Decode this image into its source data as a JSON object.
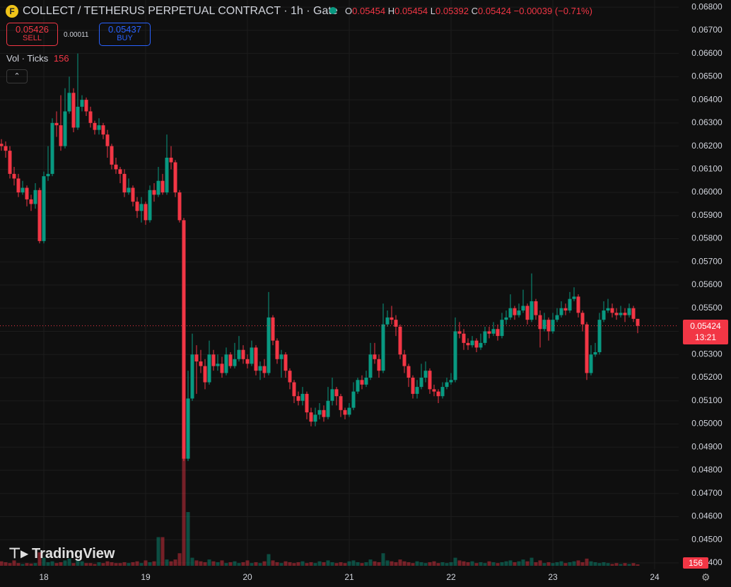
{
  "header": {
    "icon": "F",
    "title": "COLLECT / TETHERUS PERPETUAL CONTRACT · 1h · Gate",
    "ohlc_letters": [
      "O",
      "H",
      "L",
      "C"
    ],
    "change": "−0.00039 (−0.71%)",
    "sell_price": "0.05426",
    "sell_label": "SELL",
    "spread": "0.00011",
    "buy_price": "0.05437",
    "buy_label": "BUY",
    "indicator": "Vol · Ticks",
    "countdown": "13:21",
    "logo": "TradingView"
  },
  "chart_data": {
    "type": "candlestick",
    "up_color": "#089981",
    "down_color": "#f23645",
    "grid": true,
    "categories": [
      null,
      null,
      null,
      null,
      null,
      null,
      null,
      null,
      null,
      null,
      "18",
      null,
      null,
      null,
      null,
      null,
      null,
      null,
      null,
      null,
      null,
      null,
      null,
      null,
      null,
      null,
      null,
      null,
      null,
      null,
      null,
      null,
      null,
      null,
      "19",
      null,
      null,
      null,
      null,
      null,
      null,
      null,
      null,
      null,
      null,
      null,
      null,
      null,
      null,
      null,
      null,
      null,
      null,
      null,
      null,
      null,
      null,
      null,
      "20",
      null,
      null,
      null,
      null,
      null,
      null,
      null,
      null,
      null,
      null,
      null,
      null,
      null,
      null,
      null,
      null,
      null,
      null,
      null,
      null,
      null,
      null,
      null,
      "21",
      null,
      null,
      null,
      null,
      null,
      null,
      null,
      null,
      null,
      null,
      null,
      null,
      null,
      null,
      null,
      null,
      null,
      null,
      null,
      null,
      null,
      null,
      null,
      "22",
      null,
      null,
      null,
      null,
      null,
      null,
      null,
      null,
      null,
      null,
      null,
      null,
      null,
      null,
      null,
      null,
      null,
      null,
      null,
      null,
      null,
      null,
      null,
      "23",
      null,
      null,
      null,
      null,
      null,
      null,
      null,
      null,
      null,
      null,
      null,
      null,
      null,
      null,
      null,
      null,
      null,
      null,
      null,
      null,
      null,
      null,
      null,
      "24"
    ],
    "open": [
      0.0621,
      0.062,
      0.0618,
      0.0608,
      0.0606,
      0.06,
      0.0602,
      0.0597,
      0.0595,
      0.0601,
      0.0579,
      0.0607,
      0.0608,
      0.063,
      0.0629,
      0.062,
      0.0635,
      0.0643,
      0.0628,
      0.0637,
      0.064,
      0.0635,
      0.063,
      0.0627,
      0.0629,
      0.0625,
      0.062,
      0.0612,
      0.061,
      0.0608,
      0.06,
      0.0602,
      0.0596,
      0.0592,
      0.0595,
      0.0588,
      0.0601,
      0.0599,
      0.0605,
      0.06,
      0.0615,
      0.0613,
      0.06,
      0.0588,
      0.0485,
      0.0511,
      0.053,
      0.0527,
      0.0525,
      0.0518,
      0.053,
      0.0525,
      0.0526,
      0.0522,
      0.053,
      0.0525,
      0.0528,
      0.0532,
      0.0528,
      0.0526,
      0.0533,
      0.0523,
      0.0525,
      0.0522,
      0.0546,
      0.0536,
      0.0528,
      0.053,
      0.0523,
      0.0518,
      0.0512,
      0.051,
      0.0513,
      0.0505,
      0.0501,
      0.0504,
      0.0506,
      0.0503,
      0.051,
      0.0515,
      0.0512,
      0.0506,
      0.0504,
      0.0507,
      0.0514,
      0.0519,
      0.0517,
      0.052,
      0.053,
      0.0528,
      0.0523,
      0.0543,
      0.0546,
      0.0545,
      0.0542,
      0.053,
      0.0525,
      0.052,
      0.0513,
      0.0516,
      0.052,
      0.0523,
      0.0515,
      0.0514,
      0.0512,
      0.0516,
      0.0518,
      0.0519,
      0.054,
      0.0539,
      0.0535,
      0.0534,
      0.0536,
      0.0533,
      0.0535,
      0.054,
      0.0539,
      0.0541,
      0.0538,
      0.0545,
      0.0546,
      0.055,
      0.0547,
      0.0549,
      0.0551,
      0.0545,
      0.0553,
      0.0547,
      0.0541,
      0.0545,
      0.054,
      0.0545,
      0.0547,
      0.055,
      0.0549,
      0.0554,
      0.0555,
      0.0548,
      0.0543,
      0.0522,
      0.053,
      0.0531,
      0.0545,
      0.0549,
      0.055,
      0.0548,
      0.0547,
      0.0548,
      0.0547,
      0.055,
      0.05454,
      null,
      null,
      null,
      null
    ],
    "high": [
      0.0623,
      0.0622,
      0.062,
      0.0611,
      0.0608,
      0.0605,
      0.0603,
      0.0599,
      0.0604,
      0.0602,
      0.0609,
      0.062,
      0.0632,
      0.0635,
      0.0642,
      0.0645,
      0.065,
      0.0645,
      0.066,
      0.0642,
      0.0641,
      0.0637,
      0.0631,
      0.0632,
      0.063,
      0.0627,
      0.0621,
      0.0615,
      0.0611,
      0.061,
      0.0606,
      0.0603,
      0.0598,
      0.0598,
      0.0596,
      0.0603,
      0.0604,
      0.0611,
      0.0608,
      0.0625,
      0.062,
      0.0614,
      0.0601,
      0.0589,
      0.0523,
      0.0539,
      0.0534,
      0.0532,
      0.0528,
      0.0536,
      0.0532,
      0.053,
      0.0529,
      0.0533,
      0.0531,
      0.0535,
      0.0538,
      0.0534,
      0.053,
      0.0536,
      0.0534,
      0.0527,
      0.0528,
      0.0557,
      0.0547,
      0.0537,
      0.0532,
      0.0531,
      0.0524,
      0.0519,
      0.0514,
      0.0516,
      0.0514,
      0.0507,
      0.0507,
      0.0509,
      0.0508,
      0.0516,
      0.052,
      0.0516,
      0.0513,
      0.0507,
      0.0509,
      0.0518,
      0.052,
      0.0521,
      0.0523,
      0.0535,
      0.0535,
      0.053,
      0.0552,
      0.0549,
      0.0551,
      0.0547,
      0.0543,
      0.0532,
      0.0526,
      0.0521,
      0.0519,
      0.0526,
      0.0527,
      0.0524,
      0.0517,
      0.0515,
      0.0518,
      0.052,
      0.0522,
      0.0546,
      0.0544,
      0.0541,
      0.0537,
      0.0538,
      0.0537,
      0.0539,
      0.0542,
      0.0542,
      0.0544,
      0.0543,
      0.0548,
      0.0549,
      0.0556,
      0.0551,
      0.0552,
      0.0558,
      0.0552,
      0.0565,
      0.0554,
      0.0549,
      0.0548,
      0.0546,
      0.0548,
      0.055,
      0.0553,
      0.0552,
      0.0557,
      0.0559,
      0.0556,
      0.0549,
      0.0544,
      0.0534,
      0.0535,
      0.0548,
      0.0553,
      0.0554,
      0.0552,
      0.055,
      0.0551,
      0.055,
      0.0552,
      0.0551,
      0.05454,
      null,
      null,
      null,
      null
    ],
    "low": [
      0.0618,
      0.0615,
      0.0606,
      0.0603,
      0.0598,
      0.0599,
      0.0594,
      0.0592,
      0.0593,
      0.0578,
      0.0578,
      0.0605,
      0.0607,
      0.0624,
      0.0618,
      0.0619,
      0.0634,
      0.0626,
      0.0627,
      0.0635,
      0.0633,
      0.0628,
      0.0625,
      0.0625,
      0.0623,
      0.0615,
      0.061,
      0.0608,
      0.0604,
      0.0598,
      0.0599,
      0.0594,
      0.0589,
      0.0587,
      0.0586,
      0.0587,
      0.0596,
      0.0598,
      0.0599,
      0.0599,
      0.061,
      0.0598,
      0.0587,
      0.0484,
      0.0484,
      0.051,
      0.0513,
      0.0522,
      0.0515,
      0.0517,
      0.0523,
      0.0523,
      0.052,
      0.0521,
      0.0524,
      0.0524,
      0.0527,
      0.0526,
      0.0524,
      0.0525,
      0.0521,
      0.0519,
      0.052,
      0.0521,
      0.0534,
      0.0526,
      0.052,
      0.052,
      0.0515,
      0.0509,
      0.0508,
      0.0508,
      0.0502,
      0.0499,
      0.0499,
      0.0502,
      0.0501,
      0.0502,
      0.0508,
      0.0508,
      0.0503,
      0.0502,
      0.0503,
      0.0506,
      0.0513,
      0.0515,
      0.0516,
      0.0519,
      0.0526,
      0.052,
      0.0522,
      0.0542,
      0.0543,
      0.0538,
      0.0528,
      0.0522,
      0.0516,
      0.0511,
      0.0511,
      0.0515,
      0.0518,
      0.0513,
      0.0512,
      0.0509,
      0.0511,
      0.0515,
      0.0517,
      0.0518,
      0.0537,
      0.0532,
      0.0532,
      0.0533,
      0.0531,
      0.0532,
      0.0534,
      0.0537,
      0.0538,
      0.0536,
      0.0537,
      0.0543,
      0.0545,
      0.0545,
      0.0546,
      0.0548,
      0.0543,
      0.0544,
      0.0545,
      0.0533,
      0.054,
      0.0536,
      0.0539,
      0.0544,
      0.0546,
      0.0547,
      0.0548,
      0.0553,
      0.0546,
      0.054,
      0.0519,
      0.0521,
      0.0529,
      0.053,
      0.0544,
      0.0548,
      0.0546,
      0.0545,
      0.0546,
      0.0544,
      0.0546,
      0.0544,
      0.05392,
      null,
      null,
      null,
      null
    ],
    "close": [
      0.062,
      0.0618,
      0.0608,
      0.0606,
      0.06,
      0.0602,
      0.0597,
      0.0595,
      0.0601,
      0.0579,
      0.0607,
      0.0608,
      0.063,
      0.0629,
      0.062,
      0.0635,
      0.0643,
      0.0628,
      0.0637,
      0.064,
      0.0635,
      0.063,
      0.0627,
      0.0629,
      0.0625,
      0.062,
      0.0612,
      0.061,
      0.0608,
      0.06,
      0.0602,
      0.0596,
      0.0592,
      0.0595,
      0.0588,
      0.0601,
      0.0599,
      0.0605,
      0.06,
      0.0615,
      0.0613,
      0.06,
      0.0588,
      0.0485,
      0.0511,
      0.053,
      0.0527,
      0.0525,
      0.0518,
      0.053,
      0.0525,
      0.0526,
      0.0522,
      0.053,
      0.0525,
      0.0528,
      0.0532,
      0.0528,
      0.0526,
      0.0533,
      0.0523,
      0.0525,
      0.0522,
      0.0546,
      0.0536,
      0.0528,
      0.053,
      0.0523,
      0.0518,
      0.0512,
      0.051,
      0.0513,
      0.0505,
      0.0501,
      0.0504,
      0.0506,
      0.0503,
      0.051,
      0.0515,
      0.0512,
      0.0506,
      0.0504,
      0.0507,
      0.0514,
      0.0519,
      0.0517,
      0.052,
      0.053,
      0.0528,
      0.0523,
      0.0543,
      0.0546,
      0.0545,
      0.0542,
      0.053,
      0.0525,
      0.052,
      0.0513,
      0.0516,
      0.052,
      0.0523,
      0.0515,
      0.0514,
      0.0512,
      0.0516,
      0.0518,
      0.0519,
      0.054,
      0.0539,
      0.0535,
      0.0534,
      0.0536,
      0.0533,
      0.0535,
      0.054,
      0.0539,
      0.0541,
      0.0538,
      0.0545,
      0.0546,
      0.055,
      0.0547,
      0.0549,
      0.0551,
      0.0545,
      0.0553,
      0.0547,
      0.0541,
      0.0545,
      0.054,
      0.0545,
      0.0547,
      0.055,
      0.0549,
      0.0554,
      0.0555,
      0.0548,
      0.0543,
      0.0522,
      0.053,
      0.0531,
      0.0545,
      0.0549,
      0.055,
      0.0548,
      0.0547,
      0.0548,
      0.0547,
      0.055,
      0.05454,
      0.05424,
      null,
      null,
      null,
      null
    ],
    "volume": [
      500,
      400,
      300,
      600,
      300,
      200,
      300,
      250,
      300,
      1500,
      900,
      400,
      500,
      300,
      400,
      600,
      800,
      300,
      700,
      500,
      300,
      300,
      200,
      400,
      300,
      500,
      400,
      300,
      300,
      400,
      300,
      400,
      500,
      300,
      600,
      400,
      500,
      3200,
      3200,
      700,
      500,
      700,
      1400,
      12000,
      6000,
      900,
      600,
      500,
      400,
      700,
      500,
      400,
      600,
      300,
      400,
      500,
      300,
      400,
      600,
      300,
      400,
      300,
      500,
      1300,
      600,
      400,
      300,
      500,
      400,
      300,
      400,
      500,
      300,
      400,
      300,
      500,
      400,
      600,
      400,
      300,
      400,
      300,
      500,
      600,
      400,
      300,
      400,
      700,
      500,
      400,
      1400,
      600,
      500,
      400,
      700,
      500,
      400,
      300,
      500,
      400,
      300,
      400,
      500,
      300,
      400,
      300,
      400,
      900,
      600,
      500,
      400,
      500,
      300,
      400,
      300,
      500,
      400,
      300,
      400,
      500,
      600,
      400,
      500,
      700,
      500,
      900,
      400,
      600,
      300,
      400,
      300,
      400,
      500,
      300,
      400,
      500,
      600,
      400,
      800,
      500,
      400,
      300,
      400,
      300,
      200,
      300,
      200,
      300,
      200,
      300,
      156,
      null,
      null,
      null,
      null
    ],
    "ylim": [
      0.04357,
      0.06831
    ],
    "yticks": [
      {
        "value": 0.068,
        "label": "0.06800"
      },
      {
        "value": 0.067,
        "label": "0.06700"
      },
      {
        "value": 0.066,
        "label": "0.06600"
      },
      {
        "value": 0.065,
        "label": "0.06500"
      },
      {
        "value": 0.064,
        "label": "0.06400"
      },
      {
        "value": 0.063,
        "label": "0.06300"
      },
      {
        "value": 0.062,
        "label": "0.06200"
      },
      {
        "value": 0.061,
        "label": "0.06100"
      },
      {
        "value": 0.06,
        "label": "0.06000"
      },
      {
        "value": 0.059,
        "label": "0.05900"
      },
      {
        "value": 0.058,
        "label": "0.05800"
      },
      {
        "value": 0.057,
        "label": "0.05700"
      },
      {
        "value": 0.056,
        "label": "0.05600"
      },
      {
        "value": 0.055,
        "label": "0.05500"
      },
      {
        "value": 0.054,
        "label": "0.05400"
      },
      {
        "value": 0.053,
        "label": "0.05300"
      },
      {
        "value": 0.052,
        "label": "0.05200"
      },
      {
        "value": 0.051,
        "label": "0.05100"
      },
      {
        "value": 0.05,
        "label": "0.05000"
      },
      {
        "value": 0.049,
        "label": "0.04900"
      },
      {
        "value": 0.048,
        "label": "0.04800"
      },
      {
        "value": 0.047,
        "label": "0.04700"
      },
      {
        "value": 0.046,
        "label": "0.04600"
      },
      {
        "value": 0.045,
        "label": "0.04500"
      },
      {
        "value": 0.044,
        "label": "0.04400"
      }
    ]
  }
}
